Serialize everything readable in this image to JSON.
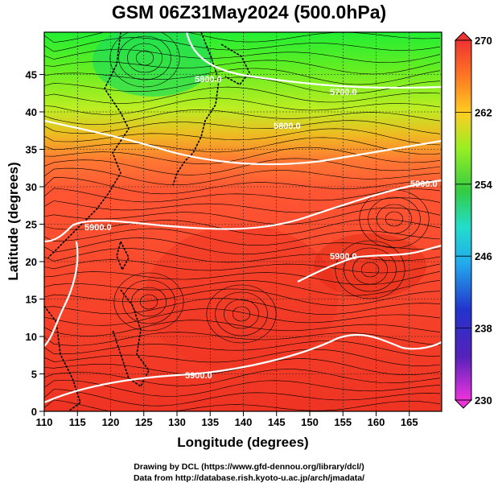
{
  "map": {
    "title": "GSM 06Z31May2024 (500.0hPa)",
    "xlabel": "Longitude (degrees)",
    "ylabel": "Latitude  (degrees)",
    "xlim": [
      110,
      170
    ],
    "ylim": [
      0,
      50
    ],
    "xticks": [
      "110",
      "115",
      "120",
      "125",
      "130",
      "135",
      "140",
      "145",
      "150",
      "155",
      "160",
      "165"
    ],
    "yticks": [
      "0",
      "5",
      "10",
      "15",
      "20",
      "25",
      "30",
      "35",
      "40",
      "45"
    ],
    "contour_labels": [
      "5800.0",
      "5700.0",
      "5800.0",
      "5900.0",
      "5900.0",
      "5900.0",
      "5900.0"
    ],
    "colorbar": {
      "min": 230,
      "max": 270,
      "ticks": [
        "230",
        "238",
        "246",
        "254",
        "262",
        "270"
      ],
      "colors": [
        "#ee33dd",
        "#3311cc",
        "#2277ff",
        "#22ccee",
        "#33cc55",
        "#88ee22",
        "#ddee22",
        "#ffbb22",
        "#ff6622",
        "#ee3322"
      ]
    },
    "credit_lines": [
      "Drawing by DCL (https://www.gfd-dennou.org/library/dcl/)",
      "Data from http://database.rish.kyoto-u.ac.jp/arch/jmadata/"
    ]
  }
}
